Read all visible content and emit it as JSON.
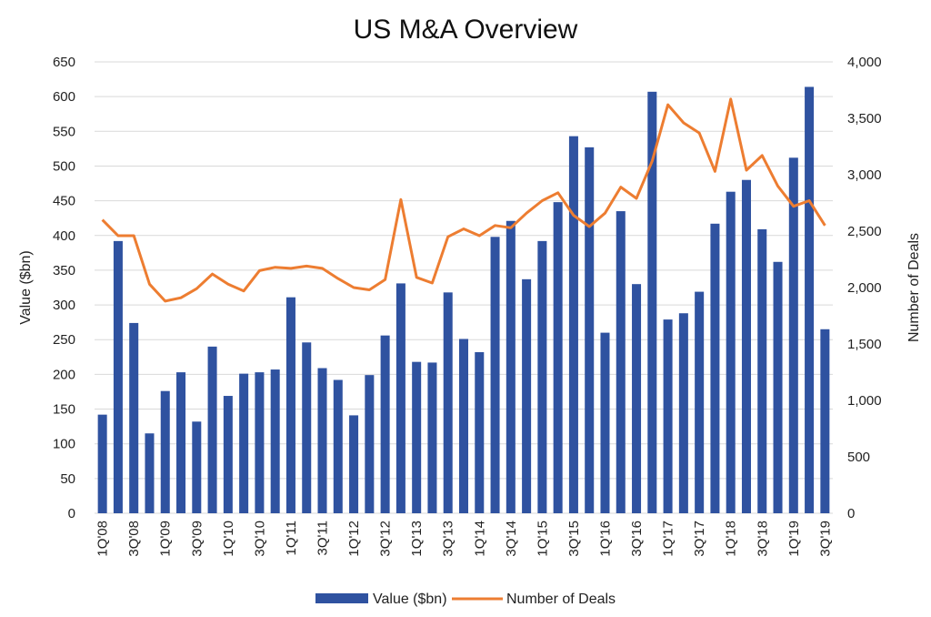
{
  "chart_data": {
    "type": "bar",
    "title": "US M&A Overview",
    "categories": [
      "1Q'08",
      "2Q'08",
      "3Q'08",
      "4Q'08",
      "1Q'09",
      "2Q'09",
      "3Q'09",
      "4Q'09",
      "1Q'10",
      "2Q'10",
      "3Q'10",
      "4Q'10",
      "1Q'11",
      "2Q'11",
      "3Q'11",
      "4Q'11",
      "1Q'12",
      "2Q'12",
      "3Q'12",
      "4Q'12",
      "1Q'13",
      "2Q'13",
      "3Q'13",
      "4Q'13",
      "1Q'14",
      "2Q'14",
      "3Q'14",
      "4Q'14",
      "1Q'15",
      "2Q'15",
      "3Q'15",
      "4Q'15",
      "1Q'16",
      "2Q'16",
      "3Q'16",
      "4Q'16",
      "1Q'17",
      "2Q'17",
      "3Q'17",
      "4Q'17",
      "1Q'18",
      "2Q'18",
      "3Q'18",
      "4Q'18",
      "1Q'19",
      "2Q'19",
      "3Q'19"
    ],
    "x_tick_labels": [
      "1Q'08",
      "3Q'08",
      "1Q'09",
      "3Q'09",
      "1Q'10",
      "3Q'10",
      "1Q'11",
      "3Q'11",
      "1Q'12",
      "3Q'12",
      "1Q'13",
      "3Q'13",
      "1Q'14",
      "3Q'14",
      "1Q'15",
      "3Q'15",
      "1Q'16",
      "3Q'16",
      "1Q'17",
      "3Q'17",
      "1Q'18",
      "3Q'18",
      "1Q'19",
      "3Q'19"
    ],
    "series": [
      {
        "name": "Value ($bn)",
        "type": "bar",
        "axis": "left",
        "color": "#2f52a0",
        "values": [
          142,
          392,
          274,
          115,
          176,
          203,
          132,
          240,
          169,
          201,
          203,
          207,
          311,
          246,
          209,
          192,
          141,
          199,
          256,
          331,
          218,
          217,
          318,
          251,
          232,
          398,
          421,
          337,
          392,
          448,
          543,
          527,
          260,
          435,
          330,
          607,
          279,
          288,
          319,
          417,
          463,
          480,
          409,
          362,
          512,
          614,
          265
        ]
      },
      {
        "name": "Number of Deals",
        "type": "line",
        "axis": "right",
        "color": "#ed7d31",
        "values": [
          2600,
          2460,
          2460,
          2030,
          1880,
          1910,
          1990,
          2120,
          2030,
          1970,
          2150,
          2180,
          2170,
          2190,
          2170,
          2080,
          2000,
          1980,
          2070,
          2780,
          2090,
          2040,
          2450,
          2520,
          2460,
          2550,
          2530,
          2660,
          2770,
          2840,
          2640,
          2540,
          2660,
          2890,
          2790,
          3120,
          3620,
          3460,
          3370,
          3030,
          3670,
          3040,
          3170,
          2900,
          2720,
          2770,
          2550
        ]
      }
    ],
    "y_left": {
      "label": "Value ($bn)",
      "min": 0,
      "max": 650,
      "step": 50
    },
    "y_right": {
      "label": "Number of Deals",
      "min": 0,
      "max": 4000,
      "step": 500,
      "tick_labels": [
        "0",
        "500",
        "1,000",
        "1,500",
        "2,000",
        "2,500",
        "3,000",
        "3,500",
        "4,000"
      ]
    },
    "grid": true,
    "legend_position": "bottom"
  }
}
